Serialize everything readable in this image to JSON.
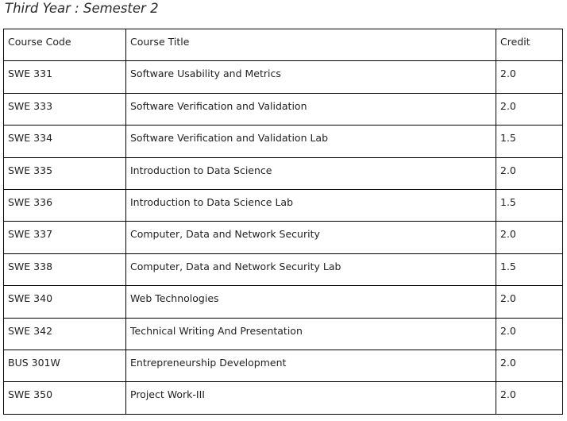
{
  "heading": "Third Year : Semester 2",
  "table": {
    "headers": {
      "code": "Course Code",
      "title": "Course Title",
      "credit": "Credit"
    },
    "rows": [
      {
        "code": "SWE 331",
        "title": "Software Usability and Metrics",
        "credit": "2.0"
      },
      {
        "code": "SWE 333",
        "title": "Software Verification and Validation",
        "credit": "2.0"
      },
      {
        "code": "SWE 334",
        "title": "Software Verification and Validation Lab",
        "credit": "1.5"
      },
      {
        "code": "SWE 335",
        "title": "Introduction to Data Science",
        "credit": "2.0"
      },
      {
        "code": "SWE 336",
        "title": "Introduction to Data Science Lab",
        "credit": "1.5"
      },
      {
        "code": "SWE 337",
        "title": "Computer, Data and Network Security",
        "credit": "2.0"
      },
      {
        "code": "SWE 338",
        "title": "Computer, Data and Network Security Lab",
        "credit": "1.5"
      },
      {
        "code": "SWE 340",
        "title": "Web Technologies",
        "credit": "2.0"
      },
      {
        "code": "SWE 342",
        "title": "Technical Writing And Presentation",
        "credit": "2.0"
      },
      {
        "code": "BUS 301W",
        "title": "Entrepreneurship Development",
        "credit": "2.0"
      },
      {
        "code": "SWE 350",
        "title": "Project Work-III",
        "credit": "2.0"
      }
    ]
  }
}
